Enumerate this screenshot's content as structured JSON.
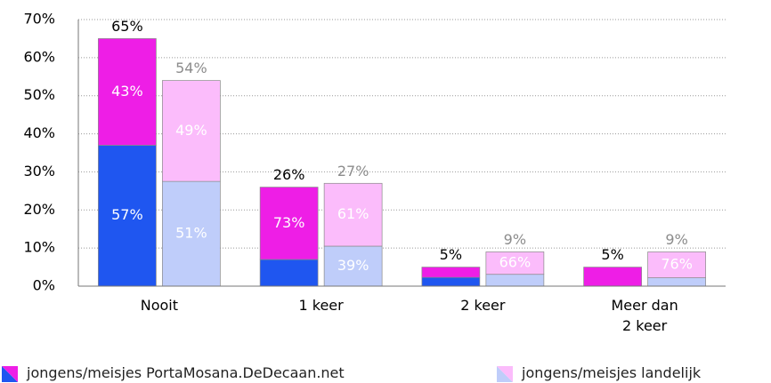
{
  "chart_data": {
    "type": "grouped_stacked_bar",
    "categories": [
      "Nooit",
      "1 keer",
      "2 keer",
      "Meer dan 2 keer"
    ],
    "ylim": [
      0,
      70
    ],
    "yticks": [
      {
        "value": 0,
        "label": "0%"
      },
      {
        "value": 10,
        "label": "10%"
      },
      {
        "value": 20,
        "label": "20%"
      },
      {
        "value": 30,
        "label": "30%"
      },
      {
        "value": 40,
        "label": "40%"
      },
      {
        "value": 50,
        "label": "50%"
      },
      {
        "value": 60,
        "label": "60%"
      },
      {
        "value": 70,
        "label": "70%"
      }
    ],
    "grid": true,
    "groups": [
      {
        "name": "jongens/meisjes PortaMosana.DeDecaan.net",
        "total_color": "#000000",
        "totals": [
          65,
          26,
          5,
          5
        ],
        "total_labels": [
          "65%",
          "26%",
          "5%",
          "5%"
        ],
        "segments": [
          {
            "color": "#1f56f0",
            "values": [
              37,
              7,
              2.3,
              0
            ],
            "shares": [
              57,
              null,
              null,
              null
            ],
            "share_labels": [
              "57%",
              null,
              null,
              null
            ]
          },
          {
            "color": "#ee1ee6",
            "values": [
              28,
              19,
              2.7,
              5
            ],
            "shares": [
              43,
              73,
              null,
              null
            ],
            "share_labels": [
              "43%",
              "73%",
              null,
              null
            ]
          }
        ]
      },
      {
        "name": "jongens/meisjes landelijk",
        "total_color": "#8c8c8c",
        "totals": [
          54,
          27,
          9,
          9
        ],
        "total_labels": [
          "54%",
          "27%",
          "9%",
          "9%"
        ],
        "segments": [
          {
            "color": "#bfcdfa",
            "values": [
              27.5,
              10.5,
              3.1,
              2.2
            ],
            "shares": [
              51,
              39,
              null,
              null
            ],
            "share_labels": [
              "51%",
              "39%",
              null,
              null
            ]
          },
          {
            "color": "#fbbcfb",
            "values": [
              26.5,
              16.5,
              5.9,
              6.8
            ],
            "shares": [
              49,
              61,
              66,
              76
            ],
            "share_labels": [
              "49%",
              "61%",
              "66%",
              "76%"
            ]
          }
        ]
      }
    ]
  }
}
